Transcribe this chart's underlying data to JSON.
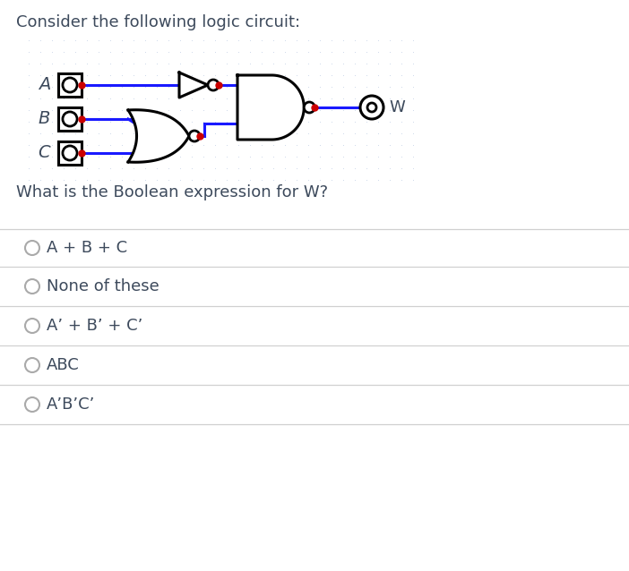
{
  "title": "Consider the following logic circuit:",
  "question": "What is the Boolean expression for W?",
  "options": [
    "A + B + C",
    "None of these",
    "A’ + B’ + C’",
    "ABC",
    "A’B’C’"
  ],
  "bg_color": "#ffffff",
  "text_color": "#3d4a5c",
  "line_color": "#1a1aff",
  "gate_color": "#000000",
  "dot_color": "#cc0000",
  "grid_color": "#c8d4e8",
  "title_fontsize": 13,
  "option_fontsize": 13
}
